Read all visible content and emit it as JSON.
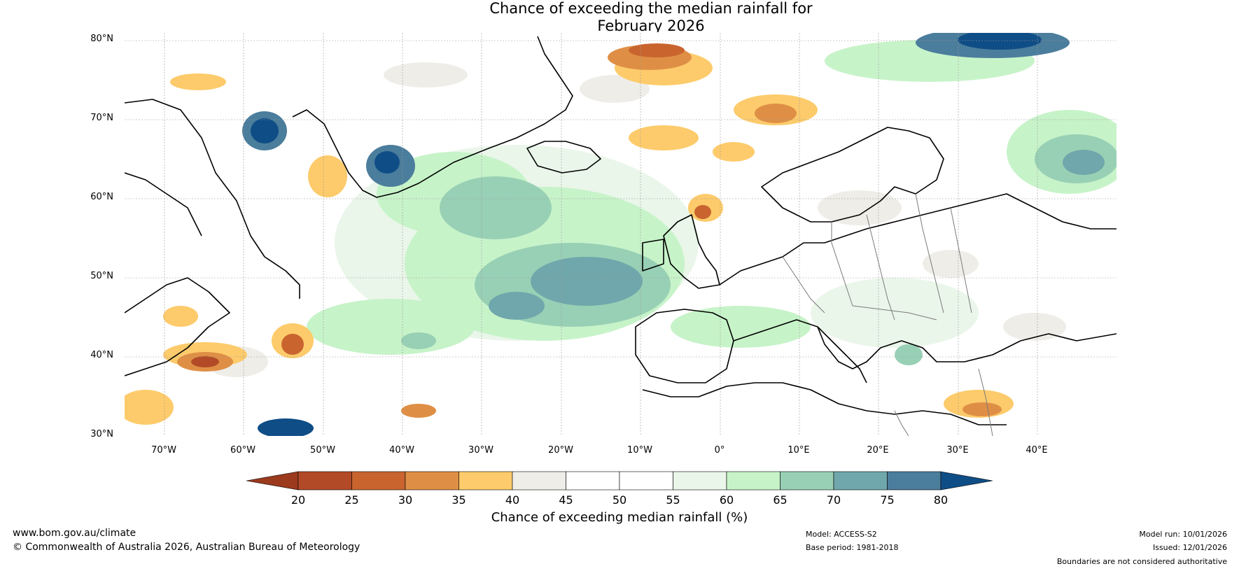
{
  "title": {
    "line1": "Chance of exceeding the median rainfall for",
    "line2": "February 2026"
  },
  "latitudes": [
    "80°N",
    "70°N",
    "60°N",
    "50°N",
    "40°N",
    "30°N"
  ],
  "longitudes": [
    "70°W",
    "60°W",
    "50°W",
    "40°W",
    "30°W",
    "20°W",
    "10°W",
    "0°",
    "10°E",
    "20°E",
    "30°E",
    "40°E"
  ],
  "colorbar": {
    "ticks": [
      "20",
      "25",
      "30",
      "35",
      "40",
      "45",
      "50",
      "55",
      "60",
      "65",
      "70",
      "75",
      "80"
    ],
    "under_color": "#9c3a1d",
    "over_color": "#0f4d86",
    "colors": [
      "#b34a27",
      "#c9642f",
      "#df8f45",
      "#fdcb6b",
      "#efede8",
      "#ffffff",
      "#ffffff",
      "#eaf6ea",
      "#c7f3c9",
      "#98d0b5",
      "#6fa7ac",
      "#4b7d9c"
    ],
    "label": "Chance of exceeding median rainfall (%)"
  },
  "footer": {
    "website": "www.bom.gov.au/climate",
    "copyright": "© Commonwealth of Australia 2026, Australian Bureau of Meteorology",
    "model": "Model: ACCESS-S2",
    "base_period": "Base period: 1981-2018",
    "model_run": "Model run: 10/01/2026",
    "issued": "Issued: 12/01/2026",
    "disclaimer": "Boundaries are not considered authoritative"
  }
}
